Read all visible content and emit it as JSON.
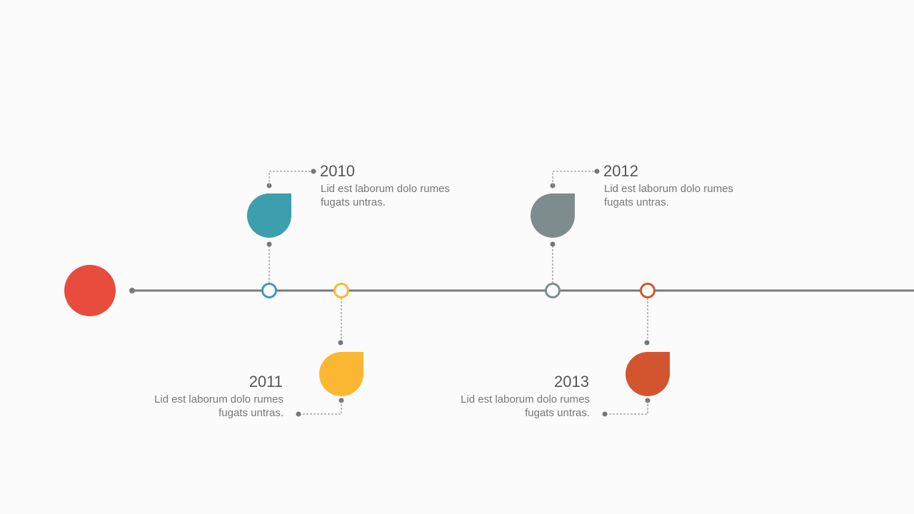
{
  "events": [
    {
      "year": "2010",
      "lines": [
        "Lid est laborum dolo rumes",
        "fugats untras."
      ]
    },
    {
      "year": "2011",
      "lines": [
        "Lid est laborum dolo rumes",
        "fugats untras."
      ]
    },
    {
      "year": "2012",
      "lines": [
        "Lid est laborum dolo rumes",
        "fugats untras."
      ]
    },
    {
      "year": "2013",
      "lines": [
        "Lid est laborum dolo rumes",
        "fugats untras."
      ]
    }
  ]
}
